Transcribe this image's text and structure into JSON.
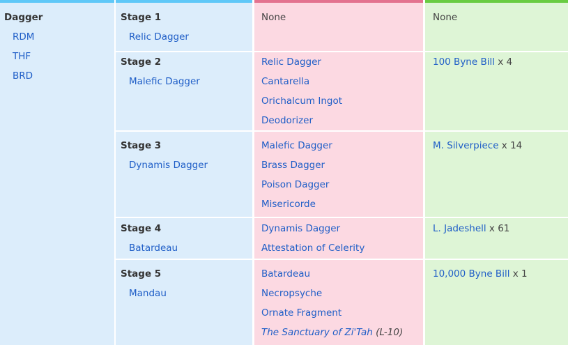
{
  "weapon": {
    "name": "Dagger",
    "jobs": [
      "RDM",
      "THF",
      "BRD"
    ]
  },
  "none_label": "None",
  "stages": [
    {
      "label": "Stage 1",
      "weapon": "Relic Dagger",
      "materials": [],
      "currency": {
        "item": "",
        "qty": ""
      }
    },
    {
      "label": "Stage 2",
      "weapon": "Malefic Dagger",
      "materials": [
        "Relic Dagger",
        "Cantarella",
        "Orichalcum Ingot",
        "Deodorizer"
      ],
      "currency": {
        "item": "100 Byne Bill",
        "qty": " x 4"
      }
    },
    {
      "label": "Stage 3",
      "weapon": "Dynamis Dagger",
      "materials": [
        "Malefic Dagger",
        "Brass Dagger",
        "Poison Dagger",
        "Misericorde"
      ],
      "currency": {
        "item": "M. Silverpiece",
        "qty": " x 14"
      }
    },
    {
      "label": "Stage 4",
      "weapon": "Batardeau",
      "materials": [
        "Dynamis Dagger",
        "Attestation of Celerity"
      ],
      "currency": {
        "item": "L. Jadeshell",
        "qty": " x 61"
      }
    },
    {
      "label": "Stage 5",
      "weapon": "Mandau",
      "materials": [
        "Batardeau",
        "Necropsyche",
        "Ornate Fragment"
      ],
      "location": {
        "name": "The Sanctuary of Zi'Tah",
        "coords": " (L-10)"
      },
      "currency": {
        "item": "10,000 Byne Bill",
        "qty": " x 1"
      }
    }
  ]
}
